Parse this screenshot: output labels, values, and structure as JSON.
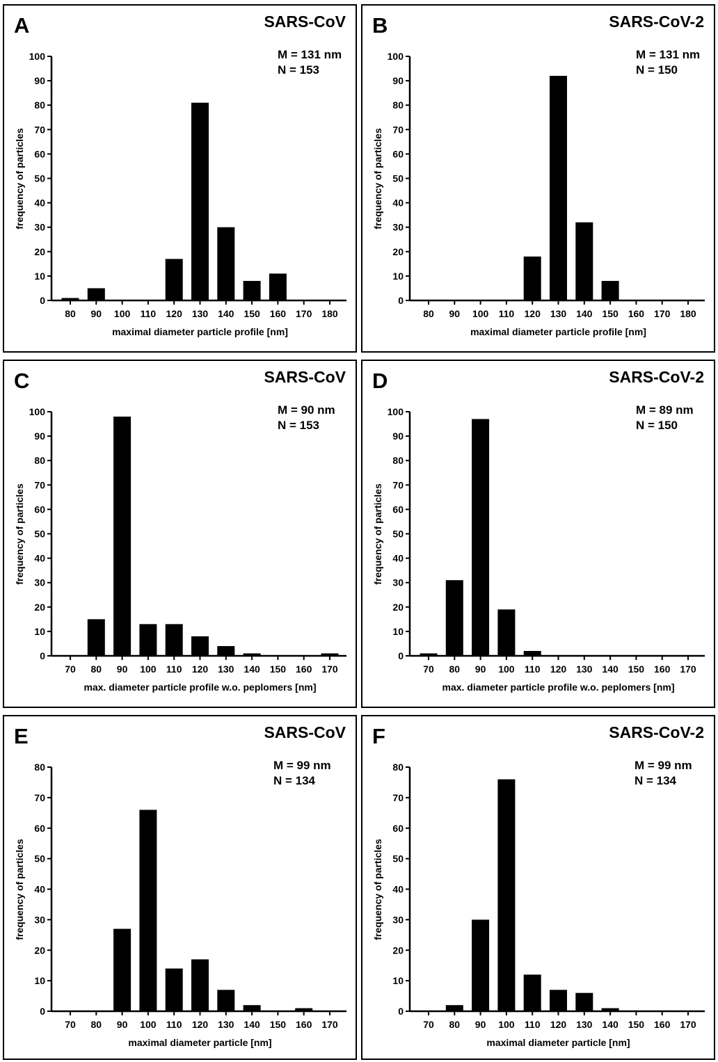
{
  "chart_data": [
    {
      "panel": "A",
      "type": "bar",
      "title": "SARS-CoV",
      "stats": [
        "M = 131 nm",
        "N = 153"
      ],
      "xlabel": "maximal diameter particle profile [nm]",
      "ylabel": "frequency of particles",
      "categories": [
        "80",
        "90",
        "100",
        "110",
        "120",
        "130",
        "140",
        "150",
        "160",
        "170",
        "180"
      ],
      "values": [
        1,
        5,
        0,
        0,
        17,
        81,
        30,
        8,
        11,
        0,
        0
      ],
      "ylim": [
        0,
        100
      ],
      "yticks": [
        0,
        10,
        20,
        30,
        40,
        50,
        60,
        70,
        80,
        90,
        100
      ],
      "bar_color": "#000000"
    },
    {
      "panel": "B",
      "type": "bar",
      "title": "SARS-CoV-2",
      "stats": [
        "M = 131 nm",
        "N = 150"
      ],
      "xlabel": "maximal diameter particle profile [nm]",
      "ylabel": "frequency of particles",
      "categories": [
        "80",
        "90",
        "100",
        "110",
        "120",
        "130",
        "140",
        "150",
        "160",
        "170",
        "180"
      ],
      "values": [
        0,
        0,
        0,
        0,
        18,
        92,
        32,
        8,
        0,
        0,
        0
      ],
      "ylim": [
        0,
        100
      ],
      "yticks": [
        0,
        10,
        20,
        30,
        40,
        50,
        60,
        70,
        80,
        90,
        100
      ],
      "bar_color": "#000000"
    },
    {
      "panel": "C",
      "type": "bar",
      "title": "SARS-CoV",
      "stats": [
        "M = 90 nm",
        "N = 153"
      ],
      "xlabel": "max. diameter particle profile w.o. peplomers [nm]",
      "ylabel": "frequency of particles",
      "categories": [
        "70",
        "80",
        "90",
        "100",
        "110",
        "120",
        "130",
        "140",
        "150",
        "160",
        "170"
      ],
      "values": [
        0,
        15,
        98,
        13,
        13,
        8,
        4,
        1,
        0,
        0,
        1
      ],
      "ylim": [
        0,
        100
      ],
      "yticks": [
        0,
        10,
        20,
        30,
        40,
        50,
        60,
        70,
        80,
        90,
        100
      ],
      "bar_color": "#000000"
    },
    {
      "panel": "D",
      "type": "bar",
      "title": "SARS-CoV-2",
      "stats": [
        "M = 89 nm",
        "N = 150"
      ],
      "xlabel": "max. diameter particle profile w.o. peplomers [nm]",
      "ylabel": "frequency of particles",
      "categories": [
        "70",
        "80",
        "90",
        "100",
        "110",
        "120",
        "130",
        "140",
        "150",
        "160",
        "170"
      ],
      "values": [
        1,
        31,
        97,
        19,
        2,
        0,
        0,
        0,
        0,
        0,
        0
      ],
      "ylim": [
        0,
        100
      ],
      "yticks": [
        0,
        10,
        20,
        30,
        40,
        50,
        60,
        70,
        80,
        90,
        100
      ],
      "bar_color": "#000000"
    },
    {
      "panel": "E",
      "type": "bar",
      "title": "SARS-CoV",
      "stats": [
        "M = 99 nm",
        "N = 134"
      ],
      "xlabel": "maximal diameter particle [nm]",
      "ylabel": "frequency of particles",
      "categories": [
        "70",
        "80",
        "90",
        "100",
        "110",
        "120",
        "130",
        "140",
        "150",
        "160",
        "170"
      ],
      "values": [
        0,
        0,
        27,
        66,
        14,
        17,
        7,
        2,
        0,
        1,
        0
      ],
      "ylim": [
        0,
        80
      ],
      "yticks": [
        0,
        10,
        20,
        30,
        40,
        50,
        60,
        70,
        80
      ],
      "bar_color": "#000000"
    },
    {
      "panel": "F",
      "type": "bar",
      "title": "SARS-CoV-2",
      "stats": [
        "M = 99 nm",
        "N = 134"
      ],
      "xlabel": "maximal diameter particle [nm]",
      "ylabel": "frequency of particles",
      "categories": [
        "70",
        "80",
        "90",
        "100",
        "110",
        "120",
        "130",
        "140",
        "150",
        "160",
        "170"
      ],
      "values": [
        0,
        2,
        30,
        76,
        12,
        7,
        6,
        1,
        0,
        0,
        0
      ],
      "ylim": [
        0,
        80
      ],
      "yticks": [
        0,
        10,
        20,
        30,
        40,
        50,
        60,
        70,
        80
      ],
      "bar_color": "#000000"
    }
  ]
}
